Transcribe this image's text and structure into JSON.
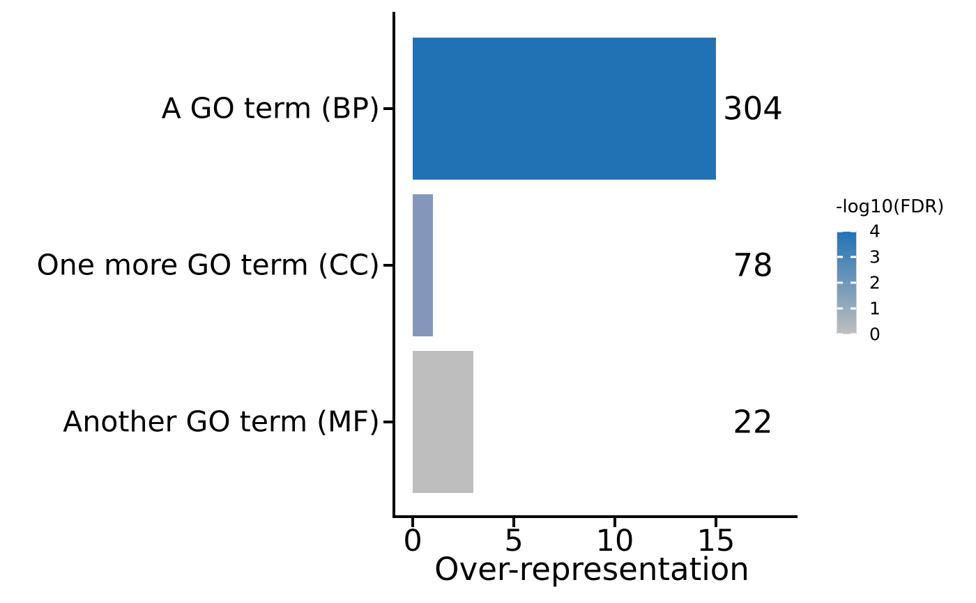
{
  "chart_data": {
    "type": "bar",
    "orientation": "horizontal",
    "title": "",
    "xlabel": "Over-representation",
    "ylabel": "",
    "categories": [
      "A GO term (BP)",
      "One more GO term (CC)",
      "Another GO term (MF)"
    ],
    "series": [
      {
        "name": "Over-representation",
        "values": [
          15,
          1,
          3
        ]
      }
    ],
    "value_labels": [
      "304",
      "78",
      "22"
    ],
    "bar_colors": [
      "#2172b5",
      "#8497ba",
      "#bebebe"
    ],
    "xticks": [
      "0",
      "5",
      "10",
      "15"
    ],
    "xtick_values": [
      0,
      5,
      10,
      15
    ],
    "xlim": [
      0,
      19
    ],
    "grid": false,
    "background": "#ffffff",
    "axis_color": "#000000",
    "legend": {
      "title": "-log10(FDR)",
      "type": "colorbar",
      "position": "right",
      "ticks": [
        "4",
        "3",
        "2",
        "1",
        "0"
      ],
      "tick_values": [
        4,
        3,
        2,
        1,
        0
      ],
      "range": [
        0,
        4
      ],
      "high_color": "#2172b5",
      "low_color": "#bebebe"
    }
  }
}
